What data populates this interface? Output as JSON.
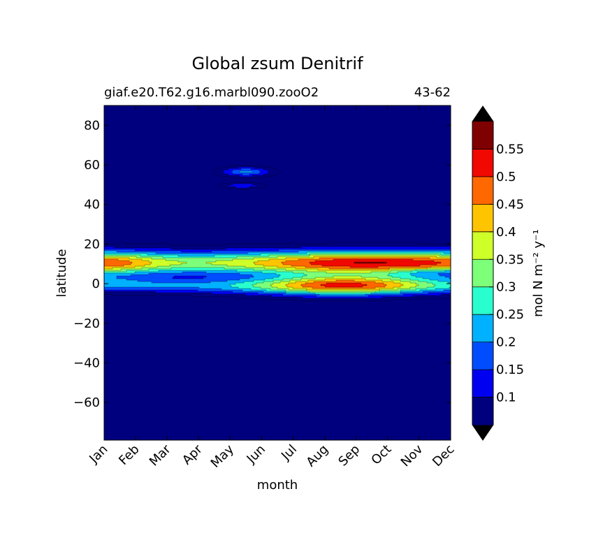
{
  "chart_data": {
    "type": "heatmap",
    "subtype": "filled-contour",
    "title": "Global zsum Denitrif",
    "subtitle_left": "giaf.e20.T62.g16.marbl090.zooO2",
    "subtitle_right": "43-62",
    "xlabel": "month",
    "ylabel": "latitude",
    "x_categories": [
      "Jan",
      "Feb",
      "Mar",
      "Apr",
      "May",
      "Jun",
      "Jul",
      "Aug",
      "Sep",
      "Oct",
      "Nov",
      "Dec"
    ],
    "y_ticks": [
      80,
      60,
      40,
      20,
      0,
      -20,
      -40,
      -60
    ],
    "y_tick_labels": [
      "80",
      "60",
      "40",
      "20",
      "0",
      "−20",
      "−40",
      "−60"
    ],
    "ylim": [
      -79,
      90
    ],
    "colorbar": {
      "label": "mol N m⁻² y⁻¹",
      "levels": [
        0.05,
        0.1,
        0.15,
        0.2,
        0.25,
        0.3,
        0.35,
        0.4,
        0.45,
        0.5,
        0.55,
        0.6
      ],
      "tick_values": [
        0.1,
        0.15,
        0.2,
        0.25,
        0.3,
        0.35,
        0.4,
        0.45,
        0.5,
        0.55
      ],
      "tick_labels": [
        "0.1",
        "0.15",
        "0.2",
        "0.25",
        "0.3",
        "0.35",
        "0.4",
        "0.45",
        "0.5",
        "0.55"
      ],
      "colors": [
        "#00007f",
        "#0000f1",
        "#004dff",
        "#00b1ff",
        "#29ffce",
        "#7dff7a",
        "#ceff29",
        "#ffc400",
        "#ff6800",
        "#f10800",
        "#7f0000"
      ],
      "extend_low_color": "#000000",
      "extend_high_color": "#000000"
    },
    "background_color": "#00007f",
    "features": [
      {
        "kind": "band",
        "months": "Jan-Dec",
        "lat_range": [
          -9,
          20
        ],
        "peak_value": 0.55,
        "peak_lat": 11,
        "peak_month": "Aug"
      },
      {
        "kind": "band",
        "months": "Jan-Dec",
        "lat_range": [
          -9,
          5
        ],
        "peak_value": 0.5,
        "peak_lat": 0,
        "peak_month": "Aug"
      },
      {
        "kind": "patch",
        "months": "May-Jun",
        "lat_range": [
          53,
          59
        ],
        "peak_value": 0.2
      },
      {
        "kind": "patch",
        "months": "May-Jun",
        "lat_range": [
          48,
          51
        ],
        "peak_value": 0.15
      }
    ]
  }
}
